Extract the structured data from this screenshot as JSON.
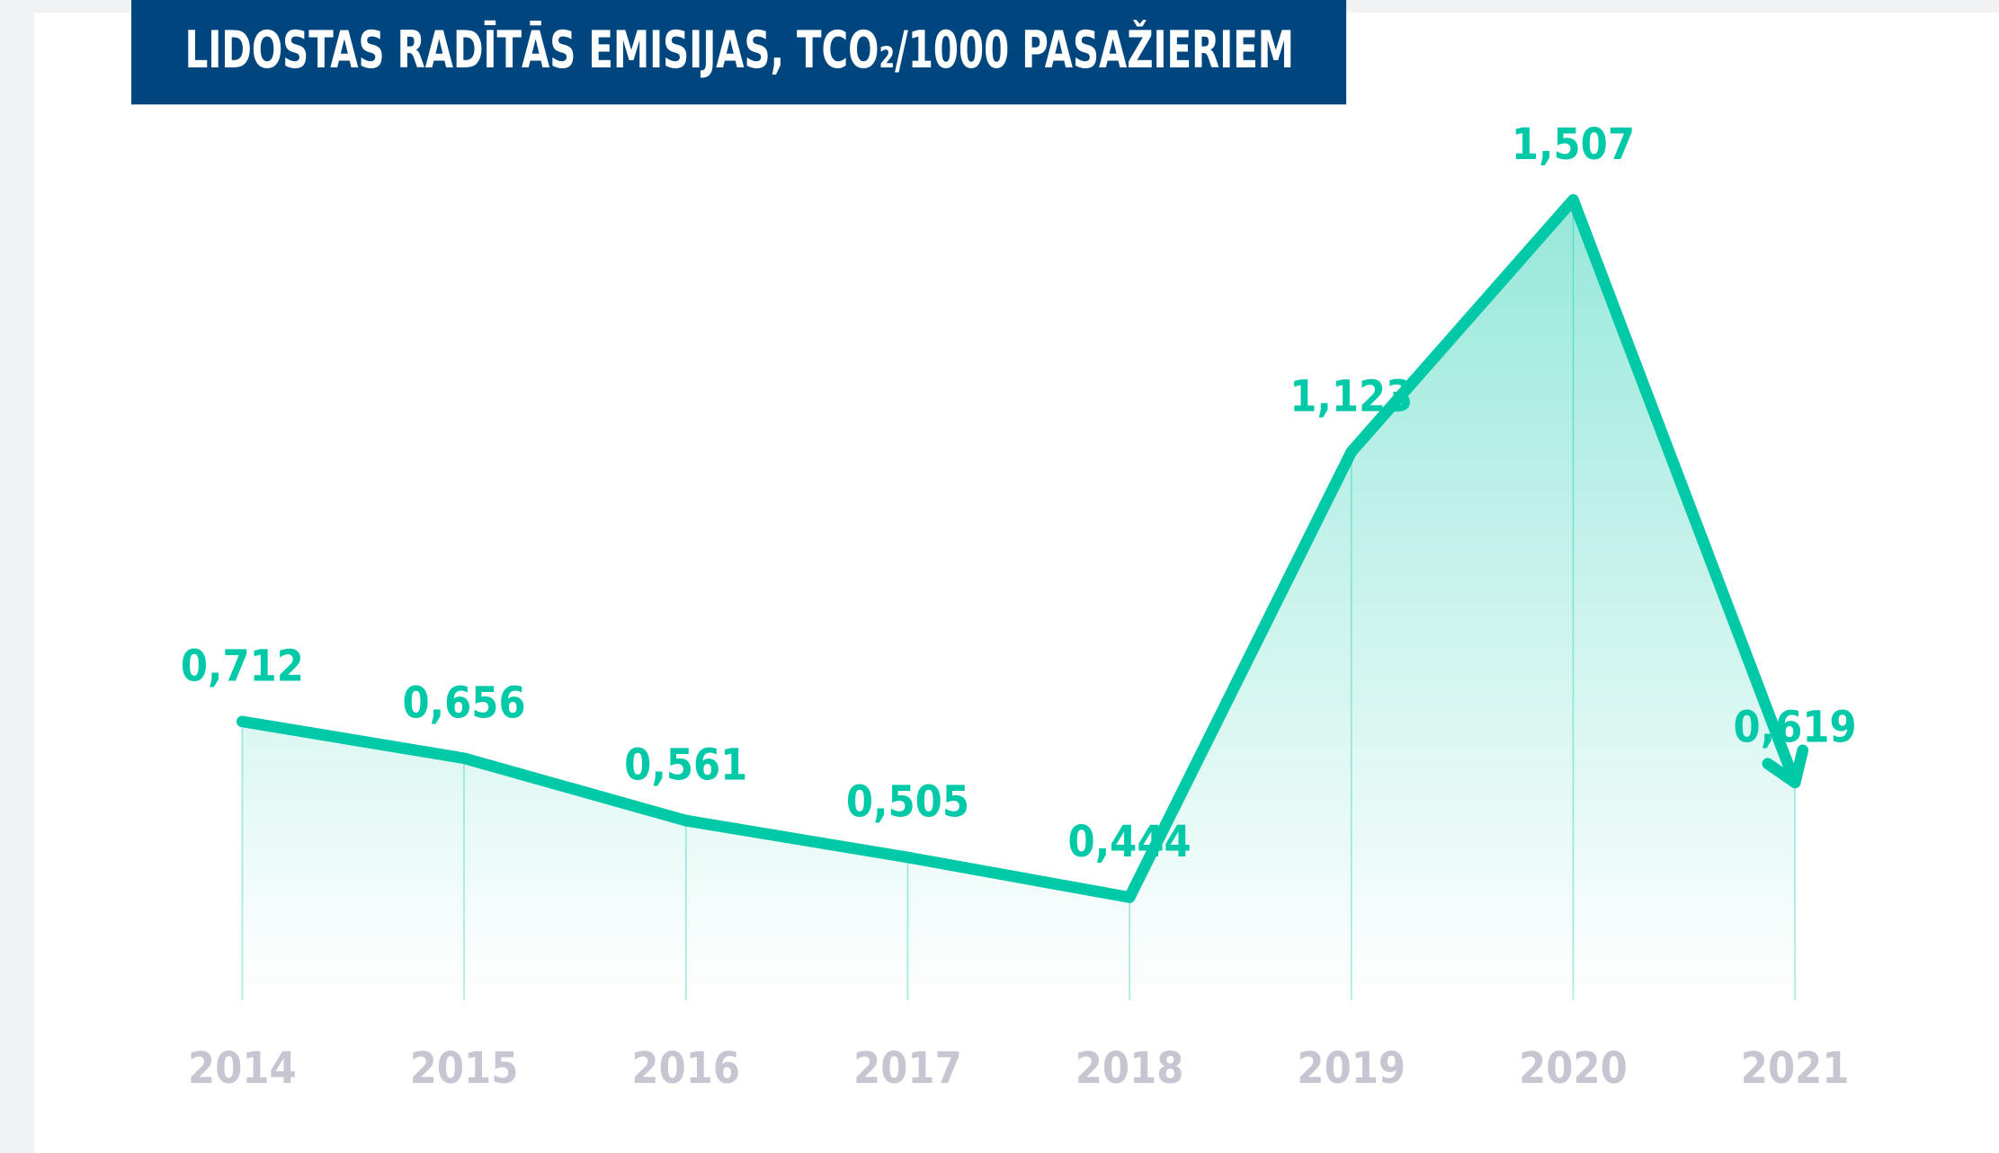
{
  "chart_data": {
    "type": "line",
    "title": "LIDOSTAS RADĪTĀS EMISIJAS, TCO₂/1000 PASAŽIERIEM",
    "categories": [
      "2014",
      "2015",
      "2016",
      "2017",
      "2018",
      "2019",
      "2020",
      "2021"
    ],
    "values": [
      0.712,
      0.656,
      0.561,
      0.505,
      0.444,
      1.123,
      1.507,
      0.619
    ],
    "value_labels": [
      "0,712",
      "0,656",
      "0,561",
      "0,505",
      "0,444",
      "1,123",
      "1,507",
      "0,619"
    ],
    "color": "#00c9a7"
  }
}
